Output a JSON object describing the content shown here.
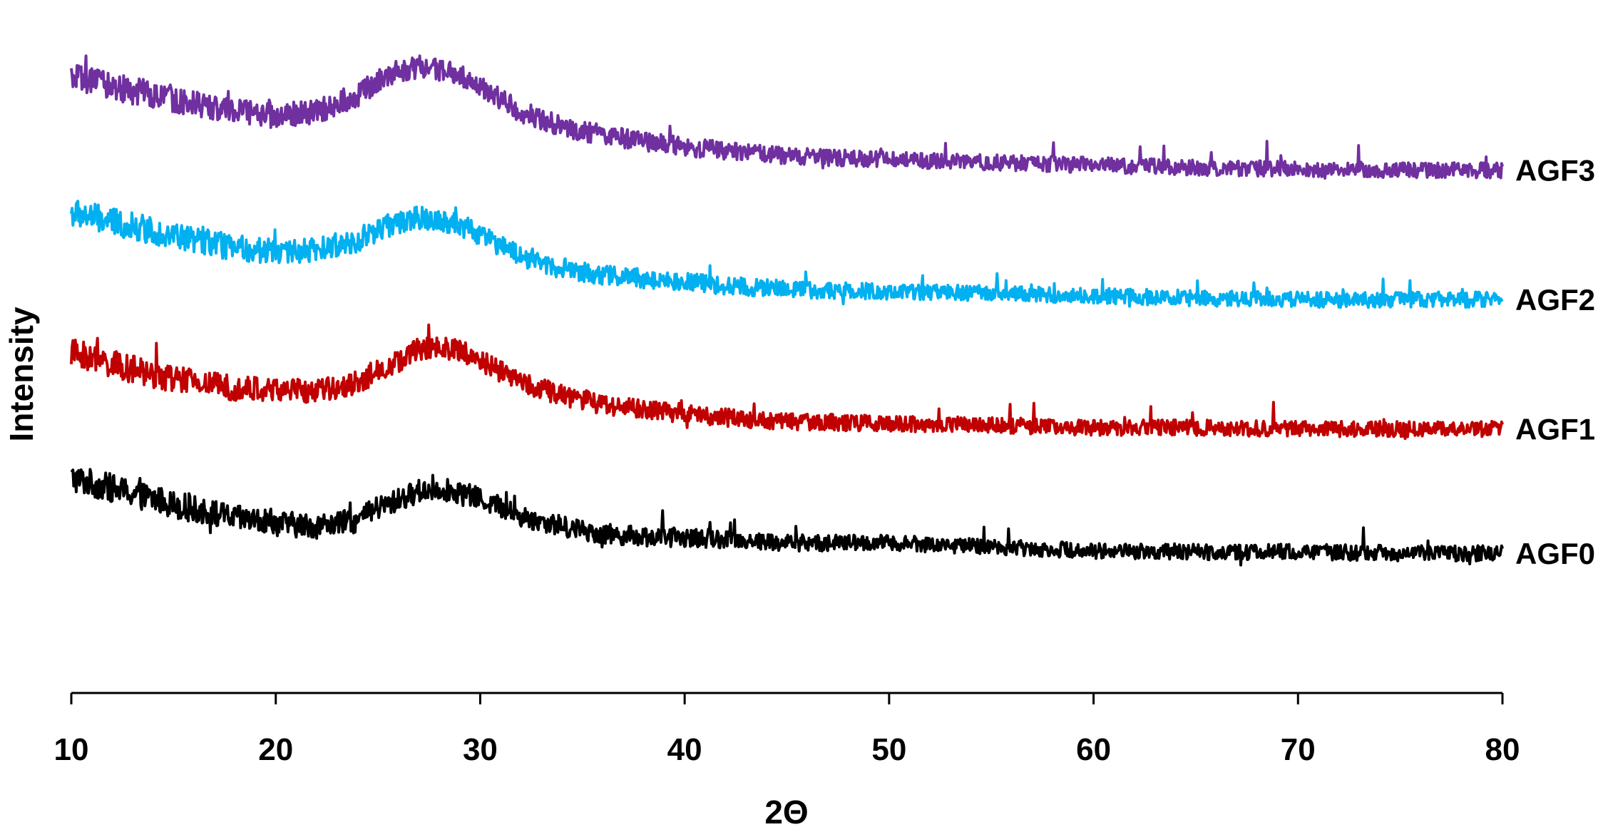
{
  "chart_data": {
    "type": "line",
    "title": "",
    "xlabel": "2Θ",
    "ylabel": "Intensity",
    "xlim": [
      10,
      80
    ],
    "x_ticks": [
      10,
      20,
      30,
      40,
      50,
      60,
      70,
      80
    ],
    "y_ticks_shown": false,
    "grid": false,
    "legend": "none (series labelled at right end of each trace)",
    "series_note": "Diffractograms are vertically stacked for clarity; values below are relative intensity (arbitrary units) with stacking offset included.",
    "series": [
      {
        "name": "AGF0",
        "color": "#000000",
        "x": [
          10,
          12,
          14,
          16,
          18,
          20,
          22,
          24,
          25,
          26,
          27,
          28,
          29,
          30,
          31,
          32,
          34,
          36,
          38,
          40,
          42,
          45,
          50,
          55,
          60,
          65,
          70,
          75,
          80
        ],
        "y": [
          16.6,
          15.8,
          15.0,
          14.2,
          13.5,
          13.1,
          12.9,
          13.3,
          14.3,
          14.9,
          15.6,
          15.8,
          15.5,
          15.0,
          14.4,
          13.6,
          12.9,
          12.3,
          12.1,
          12.0,
          11.9,
          11.6,
          11.6,
          11.3,
          11.0,
          10.9,
          10.9,
          10.8,
          10.8
        ]
      },
      {
        "name": "AGF1",
        "color": "#c00000",
        "x": [
          10,
          12,
          14,
          16,
          18,
          20,
          22,
          24,
          25,
          26,
          27,
          28,
          29,
          30,
          31,
          32,
          34,
          36,
          38,
          40,
          42,
          45,
          50,
          55,
          60,
          65,
          70,
          75,
          80
        ],
        "y": [
          26.3,
          25.4,
          24.6,
          24.0,
          23.6,
          23.4,
          23.3,
          24.0,
          24.9,
          25.6,
          26.6,
          26.7,
          26.4,
          25.8,
          24.8,
          24.0,
          23.0,
          22.3,
          21.9,
          21.6,
          21.3,
          21.0,
          20.8,
          20.7,
          20.5,
          20.5,
          20.4,
          20.4,
          20.4
        ]
      },
      {
        "name": "AGF2",
        "color": "#00b0f0",
        "x": [
          10,
          12,
          14,
          16,
          18,
          20,
          22,
          24,
          25,
          26,
          27,
          28,
          29,
          30,
          31,
          32,
          34,
          36,
          38,
          40,
          42,
          45,
          50,
          55,
          60,
          65,
          70,
          75,
          80
        ],
        "y": [
          37.1,
          36.4,
          35.7,
          35.0,
          34.4,
          34.1,
          34.2,
          35.0,
          35.8,
          36.4,
          36.7,
          36.6,
          36.2,
          35.4,
          34.6,
          33.8,
          32.8,
          32.3,
          32.0,
          31.8,
          31.5,
          31.2,
          31.0,
          30.9,
          30.7,
          30.5,
          30.4,
          30.4,
          30.4
        ]
      },
      {
        "name": "AGF3",
        "color": "#7030a0",
        "x": [
          10,
          12,
          14,
          16,
          18,
          20,
          22,
          24,
          25,
          26,
          27,
          28,
          29,
          30,
          31,
          32,
          34,
          36,
          38,
          40,
          42,
          45,
          50,
          55,
          60,
          65,
          70,
          75,
          80
        ],
        "y": [
          47.5,
          46.9,
          46.2,
          45.6,
          45.0,
          44.6,
          44.9,
          46.2,
          47.3,
          48.1,
          48.4,
          48.2,
          47.8,
          46.9,
          45.9,
          44.9,
          43.8,
          43.1,
          42.6,
          42.2,
          41.9,
          41.5,
          41.2,
          41.0,
          40.8,
          40.6,
          40.5,
          40.4,
          40.4
        ]
      }
    ],
    "ylim": [
      0,
      53
    ]
  }
}
